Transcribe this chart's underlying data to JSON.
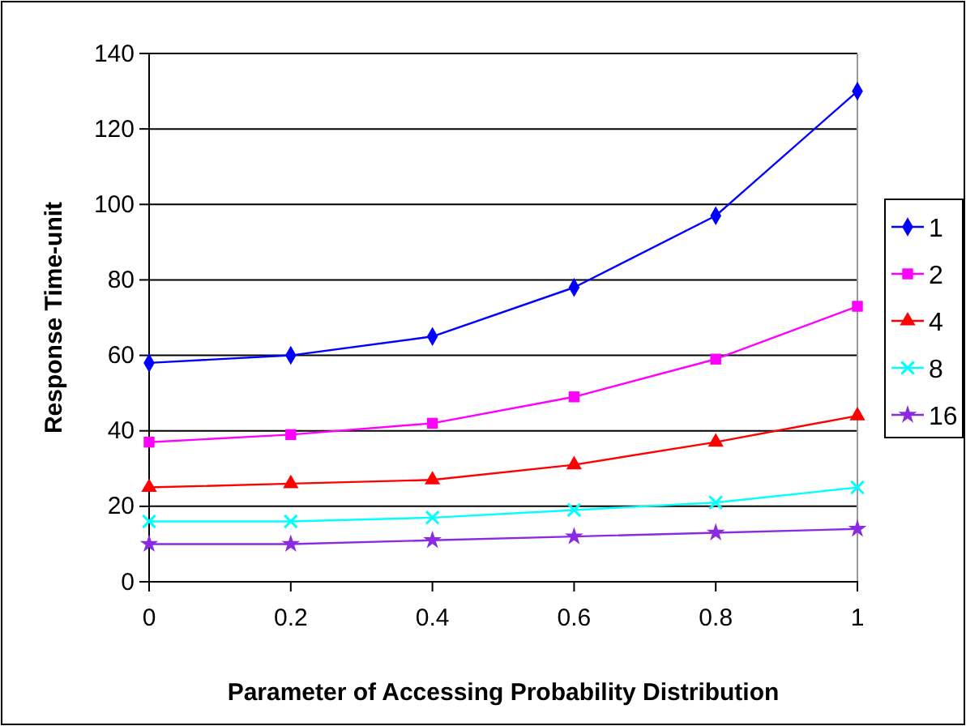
{
  "chart_data": {
    "type": "line",
    "xlabel": "Parameter of Accessing Probability Distribution",
    "ylabel": "Response Time-unit",
    "x": [
      0,
      0.2,
      0.4,
      0.6,
      0.8,
      1
    ],
    "xlim": [
      0,
      1
    ],
    "xticks": [
      0,
      0.2,
      0.4,
      0.6,
      0.8,
      1
    ],
    "ylim": [
      0,
      140
    ],
    "yticks": [
      0,
      20,
      40,
      60,
      80,
      100,
      120,
      140
    ],
    "grid": "y",
    "legend": "right",
    "series": [
      {
        "name": "1",
        "color": "#0000ff",
        "marker": "diamond",
        "values": [
          58,
          60,
          65,
          78,
          97,
          130
        ]
      },
      {
        "name": "2",
        "color": "#ff00ff",
        "marker": "square",
        "values": [
          37,
          39,
          42,
          49,
          59,
          73
        ]
      },
      {
        "name": "4",
        "color": "#ff0000",
        "marker": "triangle",
        "values": [
          25,
          26,
          27,
          31,
          37,
          44
        ]
      },
      {
        "name": "8",
        "color": "#00ffff",
        "marker": "cross",
        "values": [
          16,
          16,
          17,
          19,
          21,
          25
        ]
      },
      {
        "name": "16",
        "color": "#8a2be2",
        "marker": "star",
        "values": [
          10,
          10,
          11,
          12,
          13,
          14
        ]
      }
    ]
  }
}
